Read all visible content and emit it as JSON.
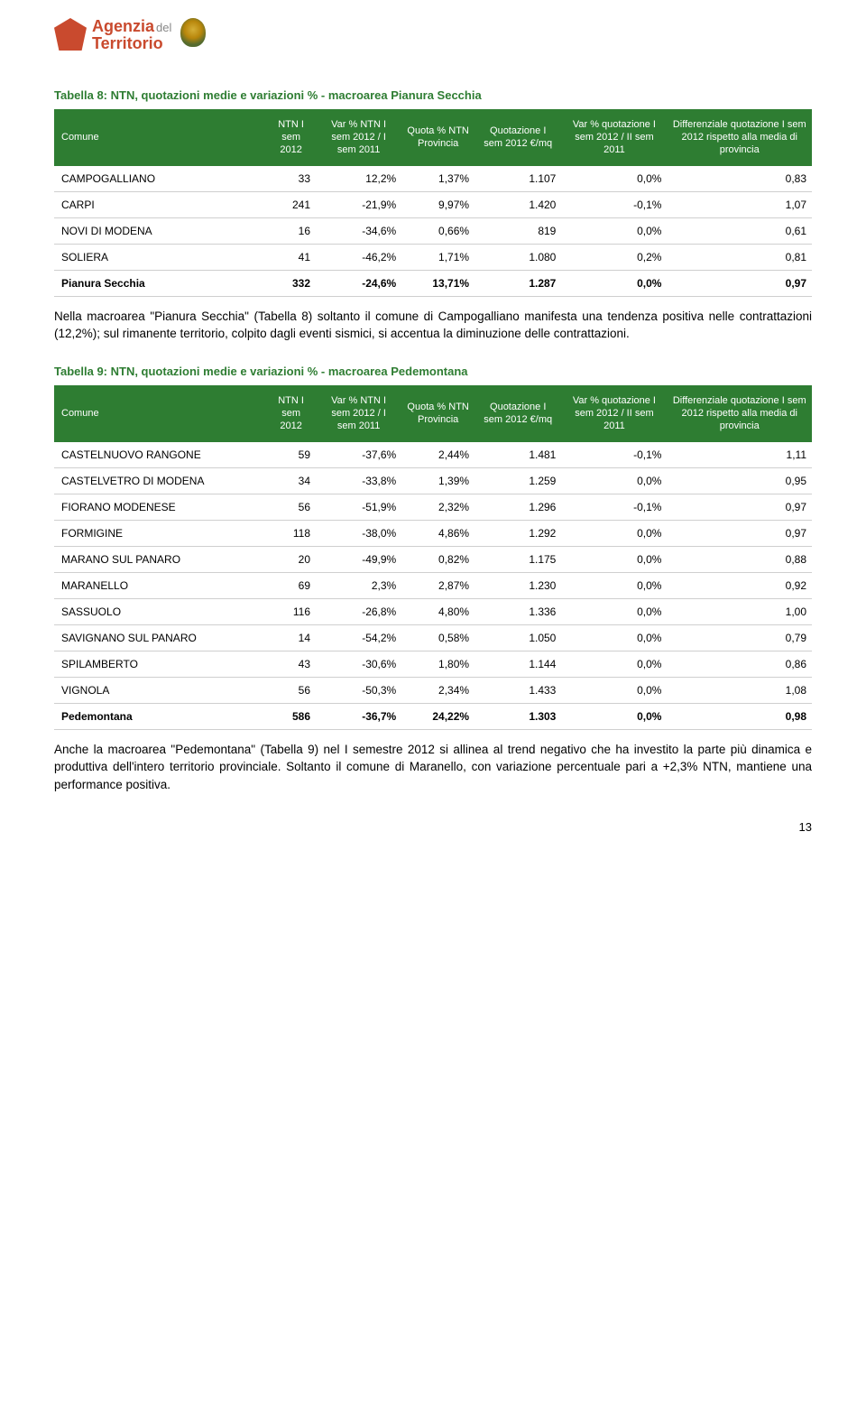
{
  "header": {
    "logo_top": "Agenzia",
    "logo_del": "del",
    "logo_bottom": "Territorio"
  },
  "table8": {
    "title": "Tabella 8: NTN, quotazioni medie e variazioni % - macroarea Pianura Secchia",
    "columns": [
      "Comune",
      "NTN I sem 2012",
      "Var % NTN I sem 2012 / I sem 2011",
      "Quota % NTN Provincia",
      "Quotazione I sem 2012 €/mq",
      "Var % quotazione I sem 2012 / II sem 2011",
      "Differenziale quotazione I sem 2012 rispetto alla media di provincia"
    ],
    "rows": [
      [
        "CAMPOGALLIANO",
        "33",
        "12,2%",
        "1,37%",
        "1.107",
        "0,0%",
        "0,83"
      ],
      [
        "CARPI",
        "241",
        "-21,9%",
        "9,97%",
        "1.420",
        "-0,1%",
        "1,07"
      ],
      [
        "NOVI DI MODENA",
        "16",
        "-34,6%",
        "0,66%",
        "819",
        "0,0%",
        "0,61"
      ],
      [
        "SOLIERA",
        "41",
        "-46,2%",
        "1,71%",
        "1.080",
        "0,2%",
        "0,81"
      ]
    ],
    "total": [
      "Pianura Secchia",
      "332",
      "-24,6%",
      "13,71%",
      "1.287",
      "0,0%",
      "0,97"
    ]
  },
  "paragraph1": "Nella macroarea \"Pianura Secchia\" (Tabella 8) soltanto il comune di Campogalliano manifesta una tendenza positiva nelle contrattazioni (12,2%); sul rimanente territorio, colpito dagli eventi sismici, si accentua la diminuzione delle contrattazioni.",
  "table9": {
    "title": "Tabella 9: NTN, quotazioni medie e variazioni % - macroarea Pedemontana",
    "columns": [
      "Comune",
      "NTN I sem 2012",
      "Var % NTN I sem 2012 / I sem 2011",
      "Quota % NTN Provincia",
      "Quotazione I sem 2012 €/mq",
      "Var % quotazione I sem 2012 / II sem 2011",
      "Differenziale quotazione I sem 2012 rispetto alla media di provincia"
    ],
    "rows": [
      [
        "CASTELNUOVO RANGONE",
        "59",
        "-37,6%",
        "2,44%",
        "1.481",
        "-0,1%",
        "1,11"
      ],
      [
        "CASTELVETRO DI MODENA",
        "34",
        "-33,8%",
        "1,39%",
        "1.259",
        "0,0%",
        "0,95"
      ],
      [
        "FIORANO MODENESE",
        "56",
        "-51,9%",
        "2,32%",
        "1.296",
        "-0,1%",
        "0,97"
      ],
      [
        "FORMIGINE",
        "118",
        "-38,0%",
        "4,86%",
        "1.292",
        "0,0%",
        "0,97"
      ],
      [
        "MARANO SUL PANARO",
        "20",
        "-49,9%",
        "0,82%",
        "1.175",
        "0,0%",
        "0,88"
      ],
      [
        "MARANELLO",
        "69",
        "2,3%",
        "2,87%",
        "1.230",
        "0,0%",
        "0,92"
      ],
      [
        "SASSUOLO",
        "116",
        "-26,8%",
        "4,80%",
        "1.336",
        "0,0%",
        "1,00"
      ],
      [
        "SAVIGNANO SUL PANARO",
        "14",
        "-54,2%",
        "0,58%",
        "1.050",
        "0,0%",
        "0,79"
      ],
      [
        "SPILAMBERTO",
        "43",
        "-30,6%",
        "1,80%",
        "1.144",
        "0,0%",
        "0,86"
      ],
      [
        "VIGNOLA",
        "56",
        "-50,3%",
        "2,34%",
        "1.433",
        "0,0%",
        "1,08"
      ]
    ],
    "total": [
      "Pedemontana",
      "586",
      "-36,7%",
      "24,22%",
      "1.303",
      "0,0%",
      "0,98"
    ]
  },
  "paragraph2": "Anche la macroarea \"Pedemontana\" (Tabella 9) nel I semestre 2012 si allinea al trend negativo che ha investito la parte più dinamica e produttiva dell'intero territorio provinciale. Soltanto il comune di Maranello, con variazione percentuale pari a +2,3% NTN, mantiene una performance positiva.",
  "page_number": "13",
  "style": {
    "header_bg": "#2e7d32",
    "header_fg": "#ffffff",
    "title_color": "#2e7d32",
    "row_border": "#cfcfcf",
    "logo_color": "#c94a2e",
    "body_font_size": 13,
    "table_font_size": 12
  }
}
